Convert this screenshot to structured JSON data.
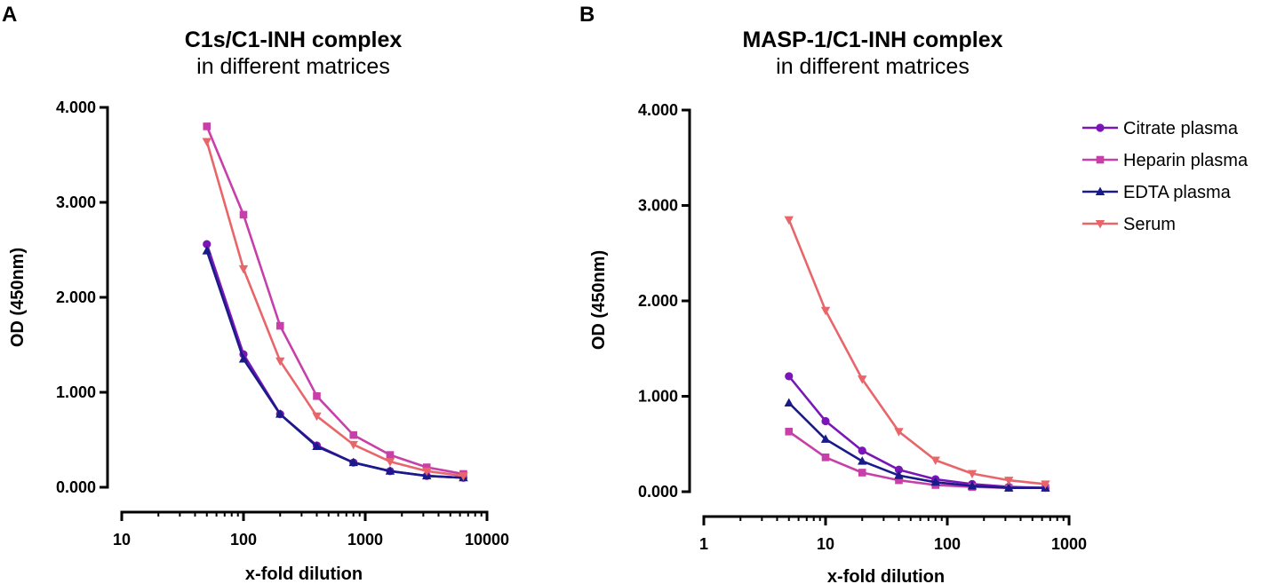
{
  "colors": {
    "Citrate plasma": "#7a16b8",
    "Heparin plasma": "#c73fa8",
    "EDTA plasma": "#1a1a8a",
    "Serum": "#e8666a"
  },
  "legend": {
    "items": [
      {
        "name": "Citrate plasma",
        "marker": "circle"
      },
      {
        "name": "Heparin plasma",
        "marker": "square"
      },
      {
        "name": "EDTA plasma",
        "marker": "triangle-up"
      },
      {
        "name": "Serum",
        "marker": "triangle-down"
      }
    ]
  },
  "chart_data": [
    {
      "panel": "A",
      "type": "line",
      "title": "C1s/C1-INH complex",
      "subtitle": "in different matrices",
      "xlabel": "x-fold dilution",
      "ylabel": "OD (450nm)",
      "xscale": "log",
      "xlim": [
        10,
        10000
      ],
      "xticks": [
        10,
        100,
        1000,
        10000
      ],
      "xtick_labels": [
        "10",
        "100",
        "1000",
        "10000"
      ],
      "ylim": [
        0,
        4
      ],
      "yticks": [
        0,
        1,
        2,
        3,
        4
      ],
      "ytick_labels": [
        "0.000",
        "1.000",
        "2.000",
        "3.000",
        "4.000"
      ],
      "x": [
        50,
        100,
        200,
        400,
        800,
        1600,
        3200,
        6400
      ],
      "series": [
        {
          "name": "Citrate plasma",
          "values": [
            2.56,
            1.4,
            0.77,
            0.44,
            0.26,
            0.17,
            0.12,
            0.1
          ]
        },
        {
          "name": "Heparin plasma",
          "values": [
            3.8,
            2.87,
            1.7,
            0.96,
            0.55,
            0.34,
            0.21,
            0.14
          ]
        },
        {
          "name": "EDTA plasma",
          "values": [
            2.49,
            1.35,
            0.77,
            0.43,
            0.26,
            0.17,
            0.12,
            0.1
          ]
        },
        {
          "name": "Serum",
          "values": [
            3.64,
            2.3,
            1.33,
            0.75,
            0.45,
            0.27,
            0.17,
            0.12
          ]
        }
      ]
    },
    {
      "panel": "B",
      "type": "line",
      "title": "MASP-1/C1-INH complex",
      "subtitle": "in different matrices",
      "xlabel": "x-fold dilution",
      "ylabel": "OD (450nm)",
      "xscale": "log",
      "xlim": [
        1,
        1000
      ],
      "xticks": [
        1,
        10,
        100,
        1000
      ],
      "xtick_labels": [
        "1",
        "10",
        "100",
        "1000"
      ],
      "ylim": [
        0,
        4
      ],
      "yticks": [
        0,
        1,
        2,
        3,
        4
      ],
      "ytick_labels": [
        "0.000",
        "1.000",
        "2.000",
        "3.000",
        "4.000"
      ],
      "x": [
        5,
        10,
        20,
        40,
        80,
        160,
        320,
        640
      ],
      "series": [
        {
          "name": "Citrate plasma",
          "values": [
            1.21,
            0.74,
            0.43,
            0.23,
            0.13,
            0.08,
            0.05,
            0.04
          ]
        },
        {
          "name": "Heparin plasma",
          "values": [
            0.63,
            0.36,
            0.2,
            0.12,
            0.07,
            0.05,
            0.04,
            0.04
          ]
        },
        {
          "name": "EDTA plasma",
          "values": [
            0.93,
            0.55,
            0.32,
            0.17,
            0.1,
            0.06,
            0.04,
            0.04
          ]
        },
        {
          "name": "Serum",
          "values": [
            2.85,
            1.9,
            1.18,
            0.63,
            0.33,
            0.19,
            0.12,
            0.08
          ]
        }
      ]
    }
  ]
}
